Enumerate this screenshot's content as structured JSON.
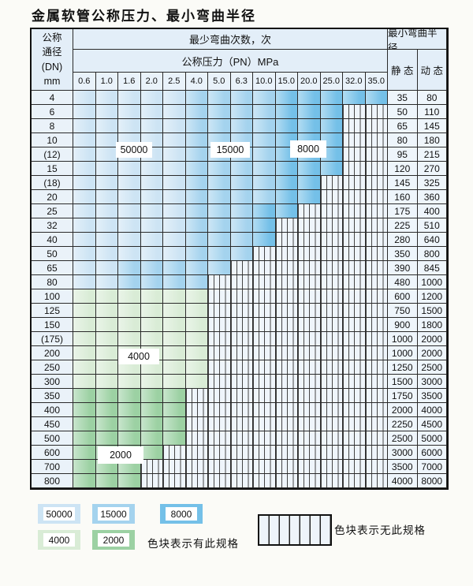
{
  "title": "金属软管公称压力、最小弯曲半径",
  "table_header": {
    "dn_lines": [
      "公称",
      "通径",
      "(DN)",
      "mm"
    ],
    "bend_times": "最少弯曲次数，次",
    "bend_radius": "最小弯曲半径",
    "pn": "公称压力（PN）MPa",
    "static": "静 态",
    "dynamic": "动 态"
  },
  "labels": {
    "l50000": "50000",
    "l15000": "15000",
    "l8000": "8000",
    "l4000": "4000",
    "l2000": "2000"
  },
  "legend": {
    "items": [
      {
        "value": "50000",
        "color": "#cde4f4"
      },
      {
        "value": "15000",
        "color": "#a4d3ee"
      },
      {
        "value": "8000",
        "color": "#74c0e8"
      },
      {
        "value": "4000",
        "color": "#d9ecd6"
      },
      {
        "value": "2000",
        "color": "#9cd1a3"
      }
    ],
    "has_spec_text": "色块表示有此规格",
    "no_spec_text": "色块表示无此规格"
  },
  "colors": {
    "cycles_50000_light_blue": "#cde4f4",
    "cycles_15000_medium_blue": "#a4d3ee",
    "cycles_8000_dark_blue": "#74c0e8",
    "cycles_4000_light_green": "#d9ecd6",
    "cycles_2000_medium_green": "#9cd1a3",
    "no_spec_hatch_bg": "#eff5fb",
    "grid_line": "#2a2a2a"
  },
  "chart_data": {
    "type": "table",
    "title": "金属软管公称压力、最小弯曲半径",
    "x_header": "公称压力（PN）MPa",
    "y_header": "公称通径(DN) mm",
    "value_header": "最少弯曲次数，次",
    "radius_header": "最小弯曲半径 (静态/动态)",
    "pn_columns": [
      "0.6",
      "1.0",
      "1.6",
      "2.0",
      "2.5",
      "4.0",
      "5.0",
      "6.3",
      "10.0",
      "15.0",
      "20.0",
      "25.0",
      "32.0",
      "35.0"
    ],
    "cell_codes": {
      "L": 50000,
      "M": 15000,
      "D": 8000,
      "G": 4000,
      "E": 2000,
      "H": "无此规格"
    },
    "rows": [
      {
        "dn": "4",
        "cells": "LLLLLMMMMDDDDD",
        "static": "35",
        "dynamic": "80"
      },
      {
        "dn": "6",
        "cells": "LLLLLMMMMDDDHH",
        "static": "50",
        "dynamic": "110"
      },
      {
        "dn": "8",
        "cells": "LLLLLMMMMDDDHH",
        "static": "65",
        "dynamic": "145"
      },
      {
        "dn": "10",
        "cells": "LLLLLMMMMDDDHH",
        "static": "80",
        "dynamic": "180"
      },
      {
        "dn": "(12)",
        "cells": "LLLLLMMMMDDDHH",
        "static": "95",
        "dynamic": "215"
      },
      {
        "dn": "15",
        "cells": "LLLLLMMMMDDDHH",
        "static": "120",
        "dynamic": "270"
      },
      {
        "dn": "(18)",
        "cells": "LLLLLMMMMDDHHH",
        "static": "145",
        "dynamic": "325"
      },
      {
        "dn": "20",
        "cells": "LLLLLMMMMDDHHH",
        "static": "160",
        "dynamic": "360"
      },
      {
        "dn": "25",
        "cells": "LLLLLMMMDDHHHH",
        "static": "175",
        "dynamic": "400"
      },
      {
        "dn": "32",
        "cells": "LLLLLMMMDHHHHH",
        "static": "225",
        "dynamic": "510"
      },
      {
        "dn": "40",
        "cells": "LLLLLMMMDHHHHH",
        "static": "280",
        "dynamic": "640"
      },
      {
        "dn": "50",
        "cells": "LLLLLMMMHHHHHH",
        "static": "350",
        "dynamic": "800"
      },
      {
        "dn": "65",
        "cells": "LLMMMMMHHHHHHH",
        "static": "390",
        "dynamic": "845"
      },
      {
        "dn": "80",
        "cells": "LLMMMMHHHHHHHH",
        "static": "480",
        "dynamic": "1000"
      },
      {
        "dn": "100",
        "cells": "GGGGGGHHHHHHHH",
        "static": "600",
        "dynamic": "1200"
      },
      {
        "dn": "125",
        "cells": "GGGGGGHHHHHHHH",
        "static": "750",
        "dynamic": "1500"
      },
      {
        "dn": "150",
        "cells": "GGGGGGHHHHHHHH",
        "static": "900",
        "dynamic": "1800"
      },
      {
        "dn": "(175)",
        "cells": "GGGGGGHHHHHHHH",
        "static": "1000",
        "dynamic": "2000"
      },
      {
        "dn": "200",
        "cells": "GGGGGGHHHHHHHH",
        "static": "1000",
        "dynamic": "2000"
      },
      {
        "dn": "250",
        "cells": "GGGGGGHHHHHHHH",
        "static": "1250",
        "dynamic": "2500"
      },
      {
        "dn": "300",
        "cells": "GGGGGGHHHHHHHH",
        "static": "1500",
        "dynamic": "3000"
      },
      {
        "dn": "350",
        "cells": "EEEEEHHHHHHHHH",
        "static": "1750",
        "dynamic": "3500"
      },
      {
        "dn": "400",
        "cells": "EEEEEHHHHHHHHH",
        "static": "2000",
        "dynamic": "4000"
      },
      {
        "dn": "450",
        "cells": "EEEEEHHHHHHHHH",
        "static": "2250",
        "dynamic": "4500"
      },
      {
        "dn": "500",
        "cells": "EEEEEHHHHHHHHH",
        "static": "2500",
        "dynamic": "5000"
      },
      {
        "dn": "600",
        "cells": "EEEEHHHHHHHHHH",
        "static": "3000",
        "dynamic": "6000"
      },
      {
        "dn": "700",
        "cells": "EEEHHHHHHHHHHH",
        "static": "3500",
        "dynamic": "7000"
      },
      {
        "dn": "800",
        "cells": "EEEHHHHHHHHHHH",
        "static": "4000",
        "dynamic": "8000"
      }
    ]
  }
}
